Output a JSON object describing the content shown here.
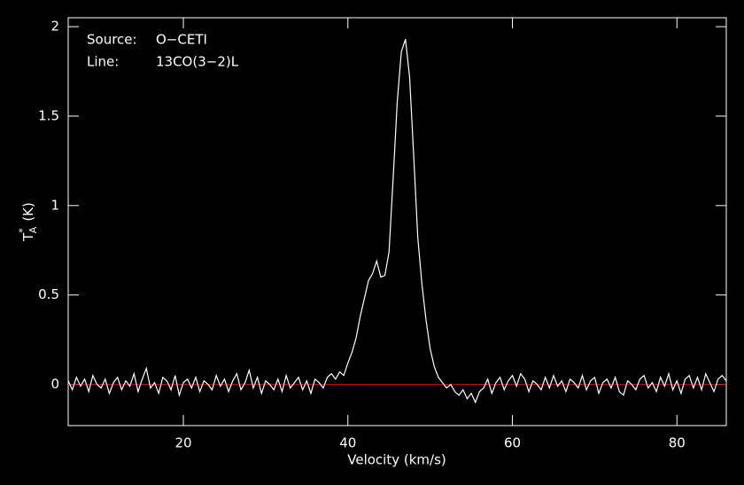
{
  "chart_data": {
    "type": "line",
    "xlabel": "Velocity (km/s)",
    "ylabel": {
      "symbol": "T",
      "sub": "A",
      "sup": "*",
      "unit": "(K)"
    },
    "annotations": [
      {
        "key": "Source:",
        "text": "O−CETI"
      },
      {
        "key": "Line:",
        "text": "13CO(3−2)L"
      }
    ],
    "xlim": [
      6,
      86
    ],
    "ylim": [
      -0.23,
      2.05
    ],
    "xticks": [
      20,
      40,
      60,
      80
    ],
    "yticks": [
      0,
      0.5,
      1,
      1.5,
      2
    ],
    "baseline": {
      "value": 0,
      "color": "#d01010"
    },
    "x": [
      6,
      6.5,
      7,
      7.5,
      8,
      8.5,
      9,
      9.5,
      10,
      10.5,
      11,
      11.5,
      12,
      12.5,
      13,
      13.5,
      14,
      14.5,
      15,
      15.5,
      16,
      16.5,
      17,
      17.5,
      18,
      18.5,
      19,
      19.5,
      20,
      20.5,
      21,
      21.5,
      22,
      22.5,
      23,
      23.5,
      24,
      24.5,
      25,
      25.5,
      26,
      26.5,
      27,
      27.5,
      28,
      28.5,
      29,
      29.5,
      30,
      30.5,
      31,
      31.5,
      32,
      32.5,
      33,
      33.5,
      34,
      34.5,
      35,
      35.5,
      36,
      36.5,
      37,
      37.5,
      38,
      38.5,
      39,
      39.5,
      40,
      40.5,
      41,
      41.5,
      42,
      42.5,
      43,
      43.5,
      44,
      44.5,
      45,
      45.5,
      46,
      46.5,
      47,
      47.5,
      48,
      48.5,
      49,
      49.5,
      50,
      50.5,
      51,
      51.5,
      52,
      52.5,
      53,
      53.5,
      54,
      54.5,
      55,
      55.5,
      56,
      56.5,
      57,
      57.5,
      58,
      58.5,
      59,
      59.5,
      60,
      60.5,
      61,
      61.5,
      62,
      62.5,
      63,
      63.5,
      64,
      64.5,
      65,
      65.5,
      66,
      66.5,
      67,
      67.5,
      68,
      68.5,
      69,
      69.5,
      70,
      70.5,
      71,
      71.5,
      72,
      72.5,
      73,
      73.5,
      74,
      74.5,
      75,
      75.5,
      76,
      76.5,
      77,
      77.5,
      78,
      78.5,
      79,
      79.5,
      80,
      80.5,
      81,
      81.5,
      82,
      82.5,
      83,
      83.5,
      84,
      84.5,
      85,
      85.5,
      86
    ],
    "series": [
      {
        "color": "#ffffff",
        "values": [
          0.02,
          -0.03,
          0.04,
          -0.01,
          0.03,
          -0.04,
          0.05,
          0.0,
          -0.02,
          0.03,
          -0.05,
          0.01,
          0.04,
          -0.03,
          0.02,
          -0.01,
          0.06,
          -0.04,
          0.03,
          0.09,
          -0.02,
          0.01,
          -0.05,
          0.04,
          0.02,
          -0.03,
          0.05,
          -0.06,
          0.01,
          0.03,
          -0.02,
          0.04,
          -0.04,
          0.02,
          0.0,
          -0.03,
          0.05,
          -0.01,
          0.03,
          -0.04,
          0.02,
          0.06,
          -0.03,
          0.01,
          0.08,
          -0.02,
          0.04,
          -0.05,
          0.02,
          0.0,
          -0.03,
          0.03,
          -0.04,
          0.05,
          -0.02,
          0.01,
          0.04,
          -0.03,
          0.02,
          -0.05,
          0.03,
          0.01,
          -0.02,
          0.04,
          0.06,
          0.03,
          0.07,
          0.05,
          0.12,
          0.18,
          0.26,
          0.38,
          0.48,
          0.58,
          0.62,
          0.69,
          0.6,
          0.61,
          0.74,
          1.15,
          1.58,
          1.86,
          1.93,
          1.72,
          1.28,
          0.82,
          0.56,
          0.36,
          0.2,
          0.1,
          0.04,
          0.01,
          -0.02,
          0.0,
          -0.04,
          -0.06,
          -0.03,
          -0.08,
          -0.05,
          -0.1,
          -0.04,
          -0.02,
          0.03,
          -0.05,
          0.01,
          0.04,
          -0.03,
          0.02,
          0.05,
          -0.01,
          0.06,
          0.03,
          -0.04,
          0.02,
          0.0,
          -0.03,
          0.04,
          -0.02,
          0.05,
          -0.01,
          0.02,
          -0.04,
          0.03,
          0.01,
          -0.02,
          0.05,
          -0.03,
          0.02,
          0.04,
          -0.05,
          0.01,
          0.03,
          -0.02,
          0.04,
          -0.04,
          -0.06,
          0.02,
          0.0,
          -0.03,
          0.03,
          0.05,
          -0.02,
          0.01,
          -0.04,
          0.04,
          -0.01,
          0.06,
          -0.03,
          0.02,
          -0.05,
          0.03,
          0.05,
          -0.02,
          0.04,
          -0.03,
          0.06,
          0.01,
          -0.04,
          0.03,
          0.05,
          0.02
        ]
      }
    ]
  }
}
